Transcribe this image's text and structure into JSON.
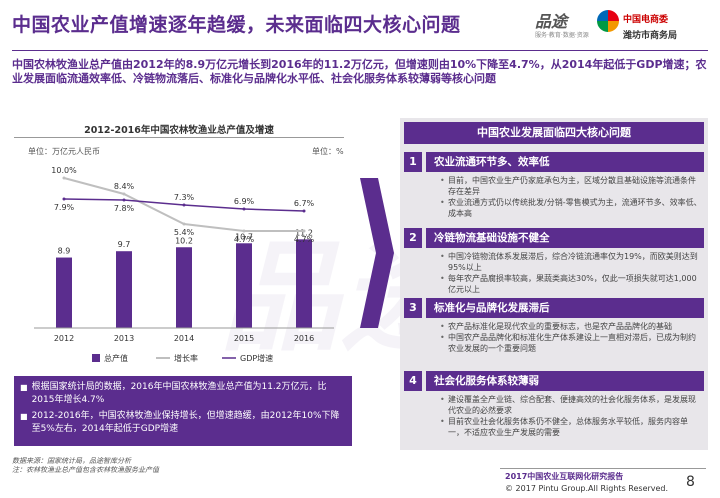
{
  "header": {
    "title": "中国农业产值增速逐年趋缓，未来面临四大核心问题",
    "logo_pinto": "品途",
    "logo_pinto_sub": "服务·教育·数据·资源",
    "logo_cm": "中国电商委",
    "logo_wf": "潍坊市商务局"
  },
  "summary": "中国农林牧渔业总产值由2012年的8.9万亿元增长到2016年的11.2万亿元，但增速则由10%下降至4.7%，从2014年起低于GDP增速；农业发展面临流通效率低、冷链物流落后、标准化与品牌化水平低、社会化服务体系较薄弱等核心问题",
  "chart_data": {
    "type": "bar",
    "title": "2012-2016年中国农林牧渔业总产值及增速",
    "unit_left": "单位：万亿元人民币",
    "unit_right": "单位：%",
    "categories": [
      "2012",
      "2013",
      "2014",
      "2015",
      "2016"
    ],
    "series": [
      {
        "name": "总产值",
        "type": "bar",
        "values": [
          8.9,
          9.7,
          10.2,
          10.7,
          11.2
        ],
        "color": "#5b2d8e"
      },
      {
        "name": "增长率",
        "type": "line",
        "values": [
          10.0,
          8.4,
          5.4,
          4.7,
          4.7
        ],
        "color": "#bfbfbf"
      },
      {
        "name": "GDP增速",
        "type": "line",
        "values": [
          7.9,
          7.8,
          7.3,
          6.9,
          6.7
        ],
        "color": "#5b2d8e"
      }
    ],
    "growth_labels": [
      "10.0%",
      "8.4%",
      "5.4%",
      "4.7%",
      "4.7%"
    ],
    "gdp_labels": [
      "7.9%",
      "7.8%",
      "7.3%",
      "6.9%",
      "6.7%"
    ],
    "legend": [
      "总产值",
      "增长率",
      "GDP增速"
    ]
  },
  "notes": [
    "根据国家统计局的数据，2016年中国农林牧渔业总产值为11.2万亿元，比2015年增长4.7%",
    "2012-2016年，中国农林牧渔业保持增长，但增速趋缓，由2012年10%下降至5%左右，2014年起低于GDP增速"
  ],
  "source": {
    "line1": "数据来源：国家统计局，品途智库分析",
    "line2": "注：农林牧渔业总产值包含农林牧渔服务业产值"
  },
  "panel": {
    "header": "中国农业发展面临四大核心问题",
    "issues": [
      {
        "num": "1",
        "title": "农业流通环节多、效率低",
        "bullets": [
          "目前，中国农业生产仍家庭承包为主，区域分散且基础设施等流通条件存在差异",
          "农业流通方式仍以传统批发/分销-零售模式为主，流通环节多、效率低、成本高"
        ]
      },
      {
        "num": "2",
        "title": "冷链物流基础设施不健全",
        "bullets": [
          "中国冷链物流体系发展滞后，综合冷链流通率仅为19%，而欧美则达到95%以上",
          "每年农产品腐损率较高，果蔬类高达30%，仅此一项损失就可达1,000亿元以上"
        ]
      },
      {
        "num": "3",
        "title": "标准化与品牌化发展滞后",
        "bullets": [
          "农产品标准化是现代农业的重要标志，也是农产品品牌化的基础",
          "中国农产品品牌化和标准化生产体系建设上一直相对滞后，已成为制约农业发展的一个重要问题"
        ]
      },
      {
        "num": "4",
        "title": "社会化服务体系较薄弱",
        "bullets": [
          "建设覆盖全产业链、综合配套、便捷高效的社会化服务体系，是发展现代农业的必然要求",
          "目前农业社会化服务体系仍不健全，总体服务水平较低，服务内容单一，不适应农业生产发展的需要"
        ]
      }
    ]
  },
  "footer": {
    "report": "2017中国农业互联网化研究报告",
    "copyright": "© 2017 Pintu Group.All Rights Reserved.",
    "page": "8"
  },
  "watermark": "品途"
}
